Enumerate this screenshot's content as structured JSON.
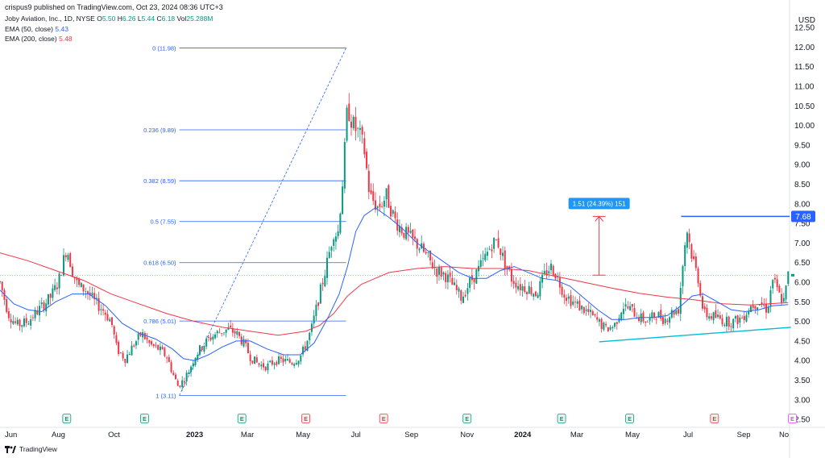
{
  "watermark": "crispus9 published on TradingView.com, Oct 23, 2024 08:36 UTC+3",
  "header": {
    "symbol": "Joby Aviation, Inc., 1D, NYSE",
    "o_label": "O",
    "o_value": "5.50",
    "h_label": "H",
    "h_value": "6.26",
    "l_label": "L",
    "l_value": "5.44",
    "c_label": "C",
    "c_value": "6.18",
    "vol_label": "Vol",
    "vol_value": "25.288M",
    "ema50_label": "EMA (50, close)",
    "ema50_value": "5.43",
    "ema200_label": "EMA (200, close)",
    "ema200_value": "5.48"
  },
  "footer": {
    "brand": "TradingView"
  },
  "colors": {
    "up": "#089981",
    "down": "#f23645",
    "ema50": "#2962ff",
    "ema200": "#f23645",
    "fib": "#2962ff",
    "trend": "#00bcd4",
    "measure": "#f23645",
    "badge": "#2196f3",
    "level": "#2962ff"
  },
  "chart_data": {
    "type": "candlestick",
    "currency_label": "USD",
    "ylim": [
      2.4,
      12.75
    ],
    "y_ticks": [
      "12.50",
      "12.00",
      "11.50",
      "11.00",
      "10.50",
      "10.00",
      "9.50",
      "9.00",
      "8.50",
      "8.00",
      "7.50",
      "7.00",
      "6.50",
      "6.00",
      "5.50",
      "5.00",
      "4.50",
      "4.00",
      "3.50",
      "3.00",
      "2.50"
    ],
    "x_range": [
      0,
      28.4
    ],
    "x_labels": [
      {
        "label": "Jun",
        "m": 0.05
      },
      {
        "label": "Aug",
        "m": 2.1
      },
      {
        "label": "Oct",
        "m": 4.1
      },
      {
        "label": "2023",
        "m": 7.0
      },
      {
        "label": "Mar",
        "m": 8.9
      },
      {
        "label": "May",
        "m": 10.9
      },
      {
        "label": "Jul",
        "m": 12.8
      },
      {
        "label": "Sep",
        "m": 14.8
      },
      {
        "label": "Nov",
        "m": 16.8
      },
      {
        "label": "2024",
        "m": 18.8
      },
      {
        "label": "Mar",
        "m": 20.75
      },
      {
        "label": "May",
        "m": 22.75
      },
      {
        "label": "Jul",
        "m": 24.75
      },
      {
        "label": "Sep",
        "m": 26.75
      },
      {
        "label": "No",
        "m": 28.2
      }
    ],
    "earnings": [
      {
        "label": "E",
        "kind": "positive",
        "m": 2.4
      },
      {
        "label": "E",
        "kind": "positive",
        "m": 5.2
      },
      {
        "label": "E",
        "kind": "positive",
        "m": 8.7
      },
      {
        "label": "E",
        "kind": "negative",
        "m": 11.0
      },
      {
        "label": "E",
        "kind": "negative",
        "m": 13.8
      },
      {
        "label": "E",
        "kind": "positive",
        "m": 16.8
      },
      {
        "label": "E",
        "kind": "positive",
        "m": 20.2
      },
      {
        "label": "E",
        "kind": "positive",
        "m": 22.65
      },
      {
        "label": "E",
        "kind": "negative",
        "m": 25.7
      },
      {
        "label": "E",
        "kind": "upcoming",
        "m": 28.5
      }
    ],
    "price_path": [
      [
        0.0,
        6.0
      ],
      [
        0.3,
        5.2
      ],
      [
        0.6,
        4.9
      ],
      [
        1.0,
        5.0
      ],
      [
        1.4,
        5.3
      ],
      [
        1.8,
        5.6
      ],
      [
        2.1,
        6.0
      ],
      [
        2.4,
        6.9
      ],
      [
        2.6,
        6.3
      ],
      [
        2.8,
        5.9
      ],
      [
        3.1,
        5.8
      ],
      [
        3.4,
        5.5
      ],
      [
        3.7,
        5.3
      ],
      [
        4.0,
        5.0
      ],
      [
        4.2,
        4.3
      ],
      [
        4.5,
        4.05
      ],
      [
        4.8,
        4.4
      ],
      [
        5.1,
        4.7
      ],
      [
        5.4,
        4.4
      ],
      [
        5.7,
        4.3
      ],
      [
        6.0,
        4.1
      ],
      [
        6.2,
        3.7
      ],
      [
        6.4,
        3.35
      ],
      [
        6.6,
        3.5
      ],
      [
        6.8,
        3.75
      ],
      [
        7.0,
        4.1
      ],
      [
        7.2,
        4.3
      ],
      [
        7.5,
        4.55
      ],
      [
        7.8,
        4.7
      ],
      [
        8.0,
        4.75
      ],
      [
        8.2,
        4.8
      ],
      [
        8.5,
        4.7
      ],
      [
        8.8,
        4.4
      ],
      [
        9.0,
        4.1
      ],
      [
        9.3,
        3.9
      ],
      [
        9.6,
        3.85
      ],
      [
        9.9,
        4.0
      ],
      [
        10.2,
        4.0
      ],
      [
        10.5,
        3.95
      ],
      [
        10.8,
        4.1
      ],
      [
        11.0,
        4.4
      ],
      [
        11.2,
        4.8
      ],
      [
        11.4,
        5.4
      ],
      [
        11.6,
        6.0
      ],
      [
        11.8,
        6.6
      ],
      [
        12.0,
        7.3
      ],
      [
        12.15,
        7.2
      ],
      [
        12.35,
        8.8
      ],
      [
        12.5,
        10.5
      ],
      [
        12.7,
        10.0
      ],
      [
        12.9,
        9.8
      ],
      [
        13.1,
        9.4
      ],
      [
        13.3,
        8.2
      ],
      [
        13.6,
        7.9
      ],
      [
        13.9,
        8.2
      ],
      [
        14.2,
        7.6
      ],
      [
        14.5,
        7.3
      ],
      [
        14.8,
        7.1
      ],
      [
        15.1,
        6.9
      ],
      [
        15.4,
        6.6
      ],
      [
        15.7,
        6.3
      ],
      [
        16.0,
        6.2
      ],
      [
        16.3,
        5.9
      ],
      [
        16.6,
        5.6
      ],
      [
        16.9,
        6.0
      ],
      [
        17.2,
        6.3
      ],
      [
        17.5,
        6.7
      ],
      [
        17.7,
        7.0
      ],
      [
        17.9,
        7.05
      ],
      [
        18.1,
        6.6
      ],
      [
        18.4,
        6.1
      ],
      [
        18.7,
        5.9
      ],
      [
        19.0,
        5.85
      ],
      [
        19.3,
        5.7
      ],
      [
        19.6,
        6.2
      ],
      [
        19.8,
        6.4
      ],
      [
        20.0,
        6.2
      ],
      [
        20.3,
        5.7
      ],
      [
        20.6,
        5.5
      ],
      [
        20.9,
        5.35
      ],
      [
        21.2,
        5.2
      ],
      [
        21.5,
        5.0
      ],
      [
        21.8,
        4.8
      ],
      [
        22.1,
        4.9
      ],
      [
        22.4,
        5.4
      ],
      [
        22.7,
        5.3
      ],
      [
        23.0,
        5.1
      ],
      [
        23.3,
        5.0
      ],
      [
        23.6,
        5.2
      ],
      [
        23.9,
        5.05
      ],
      [
        24.2,
        5.25
      ],
      [
        24.4,
        5.3
      ],
      [
        24.55,
        6.4
      ],
      [
        24.7,
        7.4
      ],
      [
        24.85,
        6.8
      ],
      [
        25.0,
        6.4
      ],
      [
        25.15,
        6.0
      ],
      [
        25.3,
        5.2
      ],
      [
        25.5,
        5.15
      ],
      [
        25.8,
        5.1
      ],
      [
        26.1,
        5.0
      ],
      [
        26.4,
        5.0
      ],
      [
        26.7,
        5.1
      ],
      [
        27.0,
        5.4
      ],
      [
        27.3,
        5.5
      ],
      [
        27.6,
        5.3
      ],
      [
        27.8,
        6.1
      ],
      [
        28.0,
        5.7
      ],
      [
        28.2,
        5.5
      ],
      [
        28.35,
        6.18
      ]
    ],
    "ema50": [
      [
        0.0,
        5.8
      ],
      [
        0.5,
        5.45
      ],
      [
        1.0,
        5.3
      ],
      [
        1.5,
        5.25
      ],
      [
        2.0,
        5.5
      ],
      [
        2.6,
        5.7
      ],
      [
        3.2,
        5.7
      ],
      [
        3.8,
        5.4
      ],
      [
        4.4,
        4.95
      ],
      [
        5.0,
        4.7
      ],
      [
        5.6,
        4.55
      ],
      [
        6.2,
        4.3
      ],
      [
        6.6,
        4.05
      ],
      [
        7.0,
        4.0
      ],
      [
        7.5,
        4.15
      ],
      [
        8.0,
        4.35
      ],
      [
        8.5,
        4.5
      ],
      [
        9.0,
        4.5
      ],
      [
        9.6,
        4.3
      ],
      [
        10.2,
        4.15
      ],
      [
        10.8,
        4.15
      ],
      [
        11.3,
        4.45
      ],
      [
        11.8,
        5.1
      ],
      [
        12.2,
        5.7
      ],
      [
        12.5,
        6.4
      ],
      [
        12.8,
        7.3
      ],
      [
        13.1,
        7.7
      ],
      [
        13.5,
        7.9
      ],
      [
        14.0,
        7.65
      ],
      [
        14.5,
        7.35
      ],
      [
        15.0,
        7.0
      ],
      [
        15.5,
        6.75
      ],
      [
        16.0,
        6.5
      ],
      [
        16.5,
        6.25
      ],
      [
        17.0,
        6.1
      ],
      [
        17.5,
        6.1
      ],
      [
        18.0,
        6.3
      ],
      [
        18.5,
        6.4
      ],
      [
        19.0,
        6.25
      ],
      [
        19.5,
        6.1
      ],
      [
        20.0,
        6.05
      ],
      [
        20.5,
        5.9
      ],
      [
        21.0,
        5.6
      ],
      [
        21.5,
        5.3
      ],
      [
        22.0,
        5.05
      ],
      [
        22.5,
        5.05
      ],
      [
        23.0,
        5.1
      ],
      [
        23.5,
        5.1
      ],
      [
        24.0,
        5.15
      ],
      [
        24.5,
        5.4
      ],
      [
        24.9,
        5.65
      ],
      [
        25.3,
        5.7
      ],
      [
        25.8,
        5.5
      ],
      [
        26.3,
        5.3
      ],
      [
        26.8,
        5.25
      ],
      [
        27.3,
        5.3
      ],
      [
        27.8,
        5.4
      ],
      [
        28.35,
        5.43
      ]
    ],
    "ema200": [
      [
        0.0,
        6.75
      ],
      [
        1.0,
        6.55
      ],
      [
        2.0,
        6.3
      ],
      [
        3.0,
        6.05
      ],
      [
        4.0,
        5.7
      ],
      [
        5.0,
        5.45
      ],
      [
        6.0,
        5.2
      ],
      [
        7.0,
        5.0
      ],
      [
        8.0,
        4.85
      ],
      [
        9.0,
        4.75
      ],
      [
        10.0,
        4.65
      ],
      [
        11.0,
        4.75
      ],
      [
        11.5,
        4.9
      ],
      [
        12.0,
        5.2
      ],
      [
        12.5,
        5.65
      ],
      [
        13.0,
        5.95
      ],
      [
        13.5,
        6.1
      ],
      [
        14.0,
        6.25
      ],
      [
        15.0,
        6.35
      ],
      [
        16.0,
        6.4
      ],
      [
        17.0,
        6.35
      ],
      [
        18.0,
        6.35
      ],
      [
        19.0,
        6.3
      ],
      [
        20.0,
        6.15
      ],
      [
        21.0,
        6.0
      ],
      [
        22.0,
        5.85
      ],
      [
        23.0,
        5.72
      ],
      [
        24.0,
        5.62
      ],
      [
        25.0,
        5.55
      ],
      [
        26.0,
        5.45
      ],
      [
        27.0,
        5.42
      ],
      [
        28.35,
        5.48
      ]
    ],
    "fib": {
      "x_start": 6.45,
      "x_end": 12.45,
      "levels": [
        {
          "label": "0 (11.98)",
          "value": 11.98
        },
        {
          "label": "0.236 (9.89)",
          "value": 9.89
        },
        {
          "label": "0.382 (8.59)",
          "value": 8.59
        },
        {
          "label": "0.5 (7.55)",
          "value": 7.55
        },
        {
          "label": "0.618 (6.50)",
          "value": 6.5
        },
        {
          "label": "0.786 (5.01)",
          "value": 5.01
        },
        {
          "label": "1 (3.11)",
          "value": 3.11
        }
      ]
    },
    "trend_line": [
      [
        21.55,
        4.48
      ],
      [
        28.45,
        4.85
      ]
    ],
    "resistance": {
      "value": 7.68,
      "label": "7.68",
      "x_start": 24.5
    },
    "current_price": 6.18,
    "measure": {
      "x": 21.55,
      "from": 6.18,
      "to": 7.68,
      "label": "1.51 (24.39%) 151"
    }
  }
}
